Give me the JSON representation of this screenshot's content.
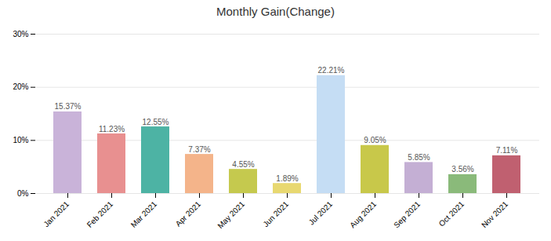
{
  "chart_data": {
    "type": "bar",
    "title": "Monthly Gain(Change)",
    "categories": [
      "Jan 2021",
      "Feb 2021",
      "Mar 2021",
      "Apr 2021",
      "May 2021",
      "Jun 2021",
      "Jul 2021",
      "Aug 2021",
      "Sep 2021",
      "Oct 2021",
      "Nov 2021"
    ],
    "values": [
      15.37,
      11.23,
      12.55,
      7.37,
      4.55,
      1.89,
      22.21,
      9.05,
      5.85,
      3.56,
      7.11
    ],
    "value_labels": [
      "15.37%",
      "11.23%",
      "12.55%",
      "7.37%",
      "4.55%",
      "1.89%",
      "22.21%",
      "9.05%",
      "5.85%",
      "3.56%",
      "7.11%"
    ],
    "data_labels": true,
    "colors": [
      "#c9b3d9",
      "#e89090",
      "#4db3a4",
      "#f4b48a",
      "#c5c94e",
      "#e8d870",
      "#c5ddf4",
      "#c8c84a",
      "#c4afd4",
      "#8aba7a",
      "#c06070"
    ],
    "ylim": [
      0,
      30
    ],
    "yticks": [
      {
        "value": 0,
        "label": "0%"
      },
      {
        "value": 10,
        "label": "10%"
      },
      {
        "value": 20,
        "label": "20%"
      },
      {
        "value": 30,
        "label": "30%"
      }
    ],
    "grid": true
  }
}
